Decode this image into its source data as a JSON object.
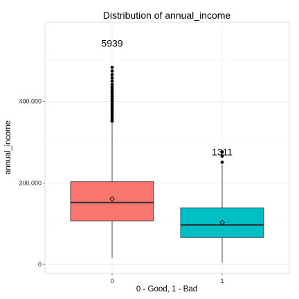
{
  "chart_data": {
    "type": "box",
    "title": "Distribution of annual_income",
    "xlabel": "0 - Good, 1 - Bad",
    "ylabel": "annual_income",
    "categories": [
      "0",
      "1"
    ],
    "ylim": [
      -22000,
      595000
    ],
    "y_ticks": [
      {
        "value": 0,
        "label": "0"
      },
      {
        "value": 200000,
        "label": "200,000"
      },
      {
        "value": 400000,
        "label": "400,000"
      }
    ],
    "grid": true,
    "boxes": [
      {
        "category": "0",
        "color": "#F8766D",
        "whisker_low": 16000,
        "q1": 107000,
        "median": 152000,
        "q3": 203000,
        "whisker_high": 347000,
        "mean": 161000,
        "outliers": [
          352000,
          358000,
          364000,
          370000,
          376000,
          382000,
          388000,
          394000,
          400000,
          406000,
          412000,
          418000,
          424000,
          430000,
          436000,
          442000,
          450000,
          458000,
          466000,
          475000,
          484000
        ],
        "count_label": "5939",
        "count_label_y": 535000
      },
      {
        "category": "1",
        "color": "#00BFC4",
        "whisker_low": 4000,
        "q1": 66000,
        "median": 97000,
        "q3": 139000,
        "whisker_high": 245000,
        "mean": 103000,
        "outliers": [
          251000,
          266000,
          276000
        ],
        "count_label": "1311",
        "count_label_y": 268000
      }
    ]
  }
}
